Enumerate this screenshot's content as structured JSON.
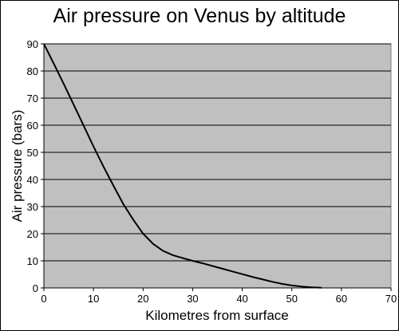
{
  "chart_data": {
    "type": "line",
    "title": "Air pressure on Venus by altitude",
    "xlabel": "Kilometres from surface",
    "ylabel": "Air pressure (bars)",
    "xlim": [
      0,
      70
    ],
    "ylim": [
      0,
      90
    ],
    "x_ticks": [
      "0",
      "10",
      "20",
      "30",
      "40",
      "50",
      "60",
      "70"
    ],
    "y_ticks": [
      "0",
      "10",
      "20",
      "30",
      "40",
      "50",
      "60",
      "70",
      "80",
      "90"
    ],
    "grid": "horizontal",
    "plot_background": "#c0c0c0",
    "line_color": "#000000",
    "series": [
      {
        "x": [
          0,
          2,
          4,
          6,
          8,
          10,
          12,
          14,
          16,
          18,
          20,
          22,
          24,
          26,
          28,
          30,
          32,
          34,
          36,
          38,
          40,
          42,
          44,
          46,
          48,
          50,
          52,
          54,
          56
        ],
        "y": [
          90,
          82.7,
          75.2,
          67.6,
          59.9,
          52.2,
          44.8,
          37.8,
          31.0,
          25.2,
          20.0,
          16.3,
          13.7,
          12.1,
          11.0,
          10.0,
          9.1,
          8.1,
          7.1,
          6.1,
          5.1,
          4.1,
          3.2,
          2.3,
          1.5,
          0.9,
          0.5,
          0.2,
          0.1
        ]
      }
    ]
  }
}
